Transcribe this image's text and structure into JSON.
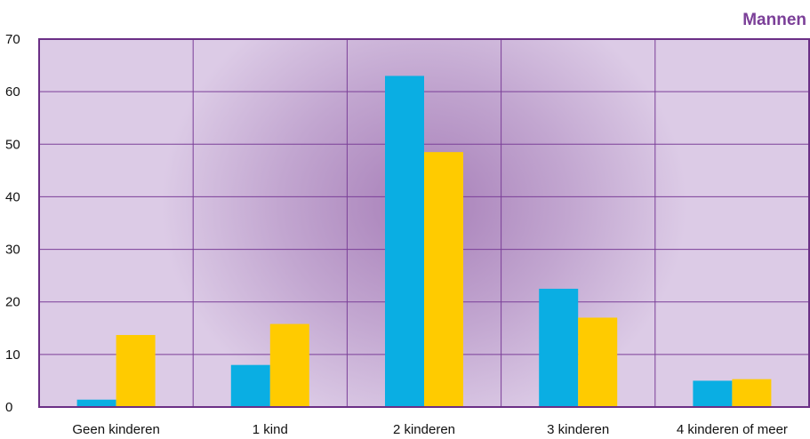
{
  "chart_data": {
    "type": "bar",
    "title": "Mannen",
    "xlabel": "",
    "ylabel": "",
    "ylim": [
      0,
      70
    ],
    "yticks": [
      0,
      10,
      20,
      30,
      40,
      50,
      60,
      70
    ],
    "categories": [
      "Geen kinderen",
      "1 kind",
      "2 kinderen",
      "3 kinderen",
      "4 kinderen of meer"
    ],
    "series": [
      {
        "values": [
          1.4,
          8.0,
          63.0,
          22.5,
          5.0
        ],
        "color": "#0aaee3"
      },
      {
        "values": [
          13.7,
          15.8,
          48.5,
          17.0,
          5.3
        ],
        "color": "#ffcb00"
      }
    ],
    "grid": true,
    "legend": "none",
    "colors": {
      "title": "#7b3f98",
      "plot_border": "#6b2f86",
      "grid": "#7b3f98",
      "background_edge": "#dccbe6",
      "background_center": "#a77fb8"
    }
  }
}
